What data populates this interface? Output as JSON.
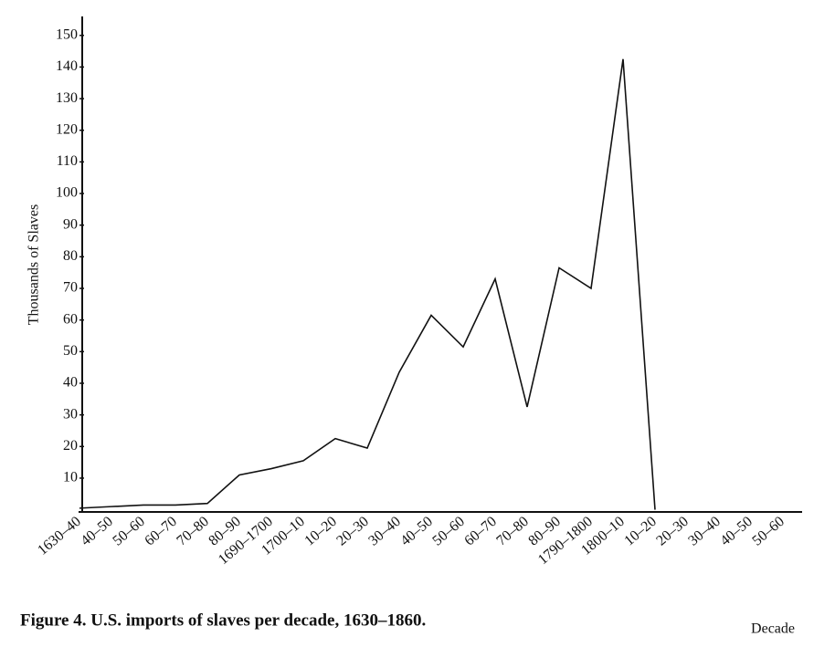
{
  "chart_data": {
    "type": "line",
    "caption": "Figure 4. U.S. imports of slaves per decade, 1630–1860.",
    "x_label": "Decade",
    "y_label": "Thousands of Slaves",
    "categories": [
      "1630–40",
      "40–50",
      "50–60",
      "60–70",
      "70–80",
      "80–90",
      "1690–1700",
      "1700–10",
      "10–20",
      "20–30",
      "30–40",
      "40–50",
      "50–60",
      "60–70",
      "70–80",
      "80–90",
      "1790–1800",
      "1800–10",
      "10–20",
      "20–30",
      "30–40",
      "40–50",
      "50–60"
    ],
    "series": [
      {
        "name": "Imports",
        "color": "#111111",
        "values": [
          0.5,
          1,
          1.5,
          1.5,
          2,
          11,
          13,
          15.5,
          22.5,
          19.5,
          43.5,
          61.5,
          51.5,
          73,
          32.5,
          76.5,
          70,
          142.5,
          0,
          null,
          null,
          null,
          null
        ]
      }
    ],
    "ylim": [
      0,
      156
    ],
    "yticks": [
      10,
      20,
      30,
      40,
      50,
      60,
      70,
      80,
      90,
      100,
      110,
      120,
      130,
      140,
      150
    ],
    "grid": false
  }
}
